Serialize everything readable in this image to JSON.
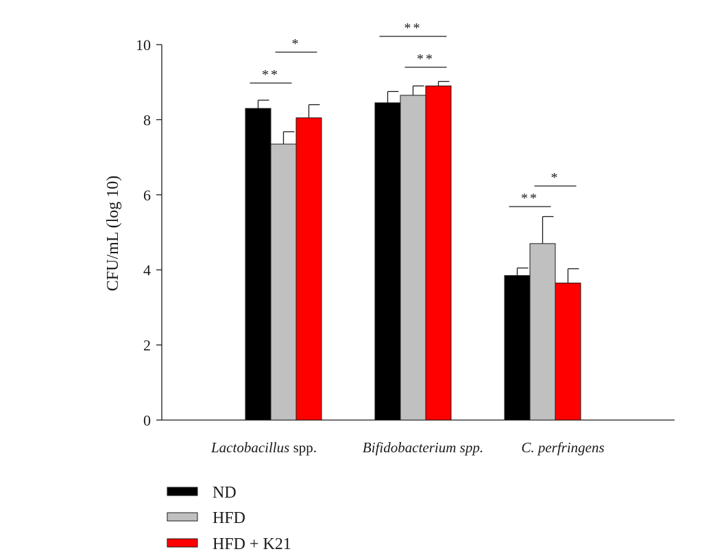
{
  "chart_data": {
    "type": "bar",
    "title": "",
    "xlabel": "",
    "ylabel": "CFU/mL (log 10)",
    "ylim": [
      0,
      10
    ],
    "yticks": [
      0,
      2,
      4,
      6,
      8,
      10
    ],
    "categories": [
      {
        "italic": "Lactobacillus",
        "plain": " spp."
      },
      {
        "italic": "Bifidobacterium spp.",
        "plain": ""
      },
      {
        "italic": "C. perfringens",
        "plain": ""
      }
    ],
    "series": [
      {
        "name": "ND",
        "color": "#000000",
        "values": [
          8.3,
          8.45,
          3.85
        ],
        "errors": [
          0.22,
          0.3,
          0.2
        ]
      },
      {
        "name": "HFD",
        "color": "#c0c0c0",
        "values": [
          7.35,
          8.65,
          4.7
        ],
        "errors": [
          0.33,
          0.25,
          0.72
        ]
      },
      {
        "name": "HFD + K21",
        "color": "#ff0000",
        "values": [
          8.05,
          8.9,
          3.65
        ],
        "errors": [
          0.35,
          0.12,
          0.38
        ]
      }
    ],
    "significance": [
      {
        "category": 0,
        "from": 0,
        "to": 1,
        "label": "**"
      },
      {
        "category": 0,
        "from": 1,
        "to": 2,
        "label": "*"
      },
      {
        "category": 1,
        "from": 0,
        "to": 2,
        "label": "**"
      },
      {
        "category": 1,
        "from": 1,
        "to": 2,
        "label": "**"
      },
      {
        "category": 2,
        "from": 0,
        "to": 1,
        "label": "**"
      },
      {
        "category": 2,
        "from": 1,
        "to": 2,
        "label": "*"
      }
    ],
    "grid": false,
    "legend_position": "bottom-left"
  }
}
